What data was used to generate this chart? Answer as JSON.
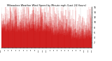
{
  "title": "Milwaukee Weather Wind Speed by Minute mph (Last 24 Hours)",
  "bg_color": "#ffffff",
  "bar_color": "#cc0000",
  "grid_color": "#bbbbbb",
  "ylim": [
    0,
    16
  ],
  "yticks": [
    2,
    4,
    6,
    8,
    10,
    12,
    14,
    16
  ],
  "num_points": 1440,
  "seed": 42,
  "figwidth": 1.6,
  "figheight": 0.87,
  "dpi": 100
}
